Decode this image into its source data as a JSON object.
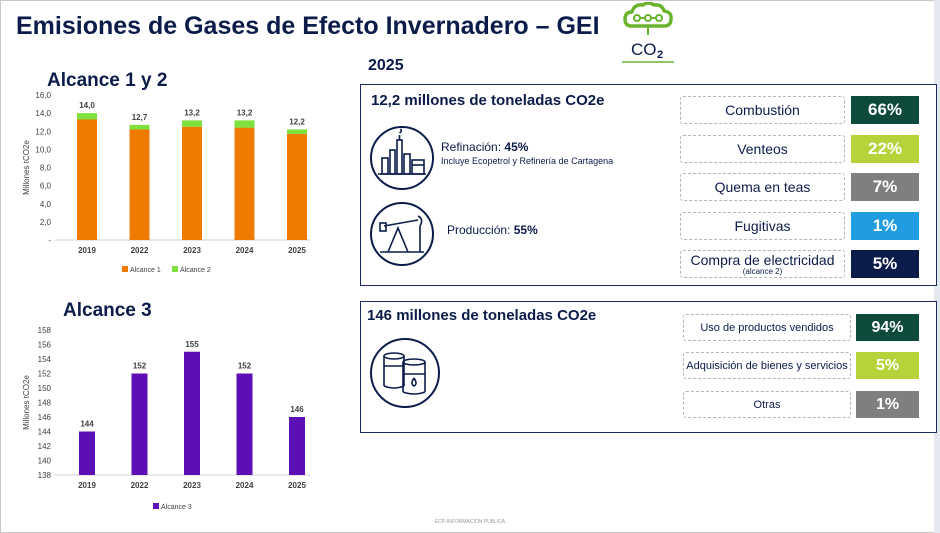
{
  "title": "Emisiones de Gases de Efecto Invernadero – GEI",
  "logo": {
    "text": "CO",
    "subscript": "2",
    "color": "#6ab42d"
  },
  "year": "2025",
  "scope12": {
    "title": "Alcance 1 y 2",
    "total_labels": [
      "14,0",
      "12,7",
      "13,2",
      "13,2",
      "12,2"
    ]
  },
  "scope3": {
    "title": "Alcance 3",
    "value_labels": [
      "144",
      "152",
      "155",
      "152",
      "146"
    ]
  },
  "chart_data": [
    {
      "type": "bar",
      "stacked": true,
      "title": "Alcance 1 y 2",
      "categories": [
        "2019",
        "2022",
        "2023",
        "2024",
        "2025"
      ],
      "series": [
        {
          "name": "Alcance 1",
          "color": "#ee7b00",
          "values": [
            13.3,
            12.2,
            12.5,
            12.4,
            11.7
          ]
        },
        {
          "name": "Alcance 2",
          "color": "#7ee13e",
          "values": [
            0.7,
            0.5,
            0.7,
            0.8,
            0.5
          ]
        }
      ],
      "ylabel": "Millones tCO2e",
      "ylim": [
        0,
        16
      ],
      "yticks": [
        "-",
        "2,0",
        "4,0",
        "6,0",
        "8,0",
        "10,0",
        "12,0",
        "14,0",
        "16,0"
      ],
      "legend": "bottom",
      "grid": false
    },
    {
      "type": "bar",
      "title": "Alcance 3",
      "categories": [
        "2019",
        "2022",
        "2023",
        "2024",
        "2025"
      ],
      "series": [
        {
          "name": "Alcance 3",
          "color": "#5b0fb4",
          "values": [
            144,
            152,
            155,
            152,
            146
          ]
        }
      ],
      "ylabel": "Millones tCO2e",
      "ylim": [
        138,
        158
      ],
      "yticks": [
        "138",
        "140",
        "142",
        "144",
        "146",
        "148",
        "150",
        "152",
        "154",
        "156",
        "158"
      ],
      "legend": "bottom",
      "grid": false
    }
  ],
  "panel1": {
    "title": "12,2 millones de toneladas CO2e",
    "sources": [
      {
        "label": "Refinación:",
        "value": "45%",
        "note": "Incluye Ecopetrol y Refinería de Cartagena",
        "icon": "refinery-icon"
      },
      {
        "label": "Producción:",
        "value": "55%",
        "icon": "oil-pump-icon"
      }
    ],
    "breakdown": [
      {
        "label": "Combustión",
        "value": "66%",
        "color": "#0d4a3b"
      },
      {
        "label": "Venteos",
        "value": "22%",
        "color": "#b6d43a"
      },
      {
        "label": "Quema en teas",
        "value": "7%",
        "color": "#7f7f7f"
      },
      {
        "label": "Fugitivas",
        "value": "1%",
        "color": "#1f9de0"
      },
      {
        "label": "Compra de electricidad",
        "sublabel": "(alcance 2)",
        "value": "5%",
        "color": "#0b1c4a"
      }
    ]
  },
  "panel2": {
    "title": "146 millones de toneladas CO2e",
    "icon": "oil-barrels-icon",
    "breakdown": [
      {
        "label": "Uso de productos vendidos",
        "value": "94%",
        "color": "#0d4a3b"
      },
      {
        "label": "Adquisición de bienes y servicios",
        "value": "5%",
        "color": "#b6d43a"
      },
      {
        "label": "Otras",
        "value": "1%",
        "color": "#7f7f7f"
      }
    ]
  },
  "footer": "ECP-INFORMACION PUBLICA"
}
